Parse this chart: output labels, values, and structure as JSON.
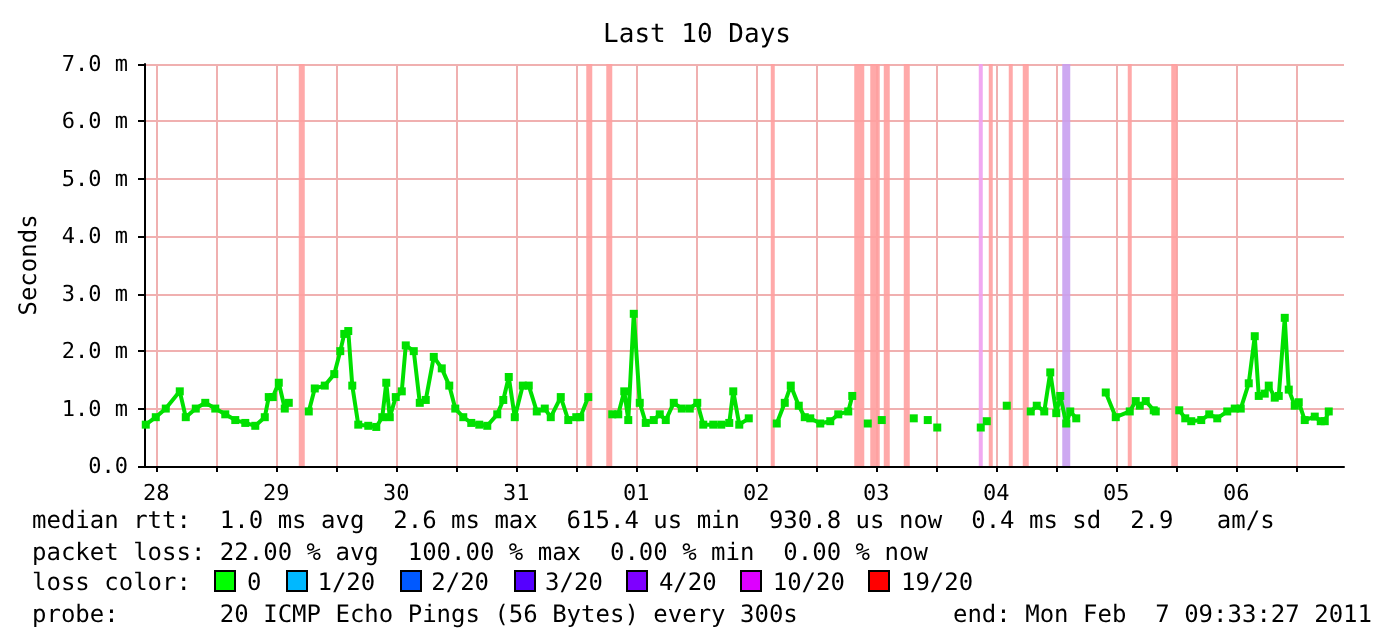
{
  "chart_data": {
    "type": "line",
    "title": "Last 10 Days",
    "ylabel": "Seconds",
    "xlim": [
      "2011-01-28T09:33",
      "2011-02-07T09:33"
    ],
    "xticks": [
      {
        "value": "2011-01-28T12:00",
        "label": "28"
      },
      {
        "value": "2011-01-29T00:00",
        "label": null
      },
      {
        "value": "2011-01-29T12:00",
        "label": "29"
      },
      {
        "value": "2011-01-30T00:00",
        "label": null
      },
      {
        "value": "2011-01-30T12:00",
        "label": "30"
      },
      {
        "value": "2011-01-31T00:00",
        "label": null
      },
      {
        "value": "2011-01-31T12:00",
        "label": "31"
      },
      {
        "value": "2011-02-01T00:00",
        "label": null
      },
      {
        "value": "2011-02-01T12:00",
        "label": "01"
      },
      {
        "value": "2011-02-02T00:00",
        "label": null
      },
      {
        "value": "2011-02-02T12:00",
        "label": "02"
      },
      {
        "value": "2011-02-03T00:00",
        "label": null
      },
      {
        "value": "2011-02-03T12:00",
        "label": "03"
      },
      {
        "value": "2011-02-04T00:00",
        "label": null
      },
      {
        "value": "2011-02-04T12:00",
        "label": "04"
      },
      {
        "value": "2011-02-05T00:00",
        "label": null
      },
      {
        "value": "2011-02-05T12:00",
        "label": "05"
      },
      {
        "value": "2011-02-06T00:00",
        "label": null
      },
      {
        "value": "2011-02-06T12:00",
        "label": "06"
      },
      {
        "value": "2011-02-07T00:00",
        "label": null
      }
    ],
    "ylim": [
      0,
      7
    ],
    "yticks": [
      {
        "value": 0,
        "label": "0.0"
      },
      {
        "value": 1,
        "label": "1.0 m"
      },
      {
        "value": 2,
        "label": "2.0 m"
      },
      {
        "value": 3,
        "label": "3.0 m"
      },
      {
        "value": 4,
        "label": "4.0 m"
      },
      {
        "value": 5,
        "label": "5.0 m"
      },
      {
        "value": 6,
        "label": "6.0 m"
      },
      {
        "value": 7,
        "label": "7.0 m"
      }
    ],
    "grid": true,
    "marker": "square",
    "line_style": "solid",
    "x": [
      "2011-01-28T09:54",
      "2011-01-28T11:54",
      "2011-01-28T13:54",
      "2011-01-28T16:42",
      "2011-01-28T17:54",
      "2011-01-28T19:54",
      "2011-01-28T21:48",
      "2011-01-28T23:48",
      "2011-01-29T01:48",
      "2011-01-29T03:48",
      "2011-01-29T05:48",
      "2011-01-29T07:48",
      "2011-01-29T09:42",
      "2011-01-29T10:30",
      "2011-01-29T11:18",
      "2011-01-29T12:30",
      "2011-01-29T13:42",
      "2011-01-29T14:30",
      "2011-01-29T16:30",
      "2011-01-29T18:30",
      "2011-01-29T19:42",
      "2011-01-29T21:42",
      "2011-01-29T23:36",
      "2011-01-30T00:48",
      "2011-01-30T01:36",
      "2011-01-30T02:24",
      "2011-01-30T03:12",
      "2011-01-30T04:24",
      "2011-01-30T06:24",
      "2011-01-30T08:00",
      "2011-01-30T09:12",
      "2011-01-30T10:00",
      "2011-01-30T10:42",
      "2011-01-30T11:54",
      "2011-01-30T13:06",
      "2011-01-30T13:54",
      "2011-01-30T15:30",
      "2011-01-30T16:42",
      "2011-01-30T17:54",
      "2011-01-30T19:30",
      "2011-01-30T21:06",
      "2011-01-30T22:36",
      "2011-01-30T23:48",
      "2011-01-31T01:24",
      "2011-01-31T03:00",
      "2011-01-31T04:36",
      "2011-01-31T06:12",
      "2011-01-31T08:12",
      "2011-01-31T09:24",
      "2011-01-31T10:30",
      "2011-01-31T11:42",
      "2011-01-31T13:18",
      "2011-01-31T14:30",
      "2011-01-31T16:06",
      "2011-01-31T17:42",
      "2011-01-31T18:54",
      "2011-01-31T20:54",
      "2011-01-31T22:24",
      "2011-02-01T00:00",
      "2011-02-01T00:48",
      "2011-02-01T02:24",
      "2011-02-01T04:48",
      "2011-02-01T07:12",
      "2011-02-01T08:24",
      "2011-02-01T09:36",
      "2011-02-01T10:24",
      "2011-02-01T11:30",
      "2011-02-01T12:42",
      "2011-02-01T13:54",
      "2011-02-01T15:30",
      "2011-02-01T16:42",
      "2011-02-01T17:54",
      "2011-02-01T19:30",
      "2011-02-01T21:06",
      "2011-02-01T22:42",
      "2011-02-02T00:12",
      "2011-02-02T01:24",
      "2011-02-02T03:24",
      "2011-02-02T05:00",
      "2011-02-02T06:36",
      "2011-02-02T07:24",
      "2011-02-02T08:36",
      "2011-02-02T10:30",
      "2011-02-02T12:54",
      "2011-02-02T16:06",
      "2011-02-02T17:42",
      "2011-02-02T18:54",
      "2011-02-02T20:30",
      "2011-02-02T21:42",
      "2011-02-02T22:48",
      "2011-02-03T00:48",
      "2011-02-03T02:48",
      "2011-02-03T04:24",
      "2011-02-03T06:24",
      "2011-02-03T07:12",
      "2011-02-03T08:48",
      "2011-02-03T10:18",
      "2011-02-03T11:54",
      "2011-02-03T13:06",
      "2011-02-03T16:18",
      "2011-02-03T19:30",
      "2011-02-03T21:00",
      "2011-02-03T22:18",
      "2011-02-03T23:00",
      "2011-02-04T00:12",
      "2011-02-04T04:36",
      "2011-02-04T08:54",
      "2011-02-04T09:30",
      "2011-02-04T10:06",
      "2011-02-04T12:06",
      "2011-02-04T14:06",
      "2011-02-04T16:30",
      "2011-02-04T18:54",
      "2011-02-04T20:06",
      "2011-02-04T21:36",
      "2011-02-04T22:48",
      "2011-02-05T00:00",
      "2011-02-05T00:48",
      "2011-02-05T02:00",
      "2011-02-05T02:48",
      "2011-02-05T04:00",
      "2011-02-05T07:12",
      "2011-02-05T09:54",
      "2011-02-05T11:54",
      "2011-02-05T14:42",
      "2011-02-05T15:54",
      "2011-02-05T16:42",
      "2011-02-05T17:54",
      "2011-02-05T19:30",
      "2011-02-05T19:54",
      "2011-02-05T22:18",
      "2011-02-06T00:36",
      "2011-02-06T01:48",
      "2011-02-06T03:00",
      "2011-02-06T05:00",
      "2011-02-06T06:36",
      "2011-02-06T08:12",
      "2011-02-06T10:12",
      "2011-02-06T11:42",
      "2011-02-06T12:54",
      "2011-02-06T14:30",
      "2011-02-06T15:42",
      "2011-02-06T16:30",
      "2011-02-06T17:42",
      "2011-02-06T18:30",
      "2011-02-06T19:42",
      "2011-02-06T20:30",
      "2011-02-06T21:42",
      "2011-02-06T22:30",
      "2011-02-06T23:42",
      "2011-02-07T00:30",
      "2011-02-07T01:42",
      "2011-02-07T03:42",
      "2011-02-07T04:54",
      "2011-02-07T05:42",
      "2011-02-07T06:30"
    ],
    "series": [
      {
        "color": "#00e000",
        "values": [
          0.72,
          0.85,
          1.0,
          1.3,
          0.85,
          1.0,
          1.1,
          1.0,
          0.9,
          0.8,
          0.75,
          0.7,
          0.85,
          1.2,
          1.2,
          1.45,
          1.0,
          1.1,
          null,
          0.95,
          1.35,
          1.4,
          1.6,
          2.0,
          2.3,
          2.35,
          1.4,
          0.72,
          0.7,
          0.68,
          0.85,
          1.45,
          0.85,
          1.2,
          1.3,
          2.1,
          2.0,
          1.1,
          1.15,
          1.9,
          1.7,
          1.4,
          1.0,
          0.85,
          0.75,
          0.72,
          0.7,
          0.9,
          1.15,
          1.55,
          0.85,
          1.4,
          1.4,
          0.95,
          1.0,
          0.85,
          1.2,
          0.8,
          0.85,
          0.85,
          1.2,
          null,
          0.9,
          0.9,
          1.3,
          0.8,
          2.65,
          1.1,
          0.75,
          0.8,
          0.9,
          0.8,
          1.1,
          1.0,
          1.0,
          1.1,
          0.72,
          0.72,
          0.72,
          0.75,
          1.3,
          0.72,
          0.83,
          null,
          0.74,
          1.1,
          1.4,
          1.05,
          0.85,
          0.83,
          0.74,
          0.78,
          0.9,
          0.95,
          1.22,
          null,
          0.74,
          null,
          0.8,
          null,
          0.83,
          null,
          0.8,
          null,
          0.67,
          null,
          0.67,
          null,
          0.78,
          null,
          1.05,
          null,
          0.95,
          1.05,
          0.95,
          1.63,
          0.92,
          1.22,
          0.74,
          0.95,
          0.83,
          null,
          1.28,
          0.85,
          0.95,
          1.13,
          1.05,
          1.13,
          0.97,
          0.95,
          null,
          0.97,
          0.83,
          0.78,
          0.8,
          0.9,
          0.83,
          0.95,
          1.0,
          1.0,
          1.44,
          2.26,
          1.22,
          1.26,
          1.4,
          1.19,
          1.22,
          2.58,
          1.33,
          1.05,
          1.11,
          0.8,
          0.86,
          0.78,
          0.78,
          0.95
        ]
      }
    ],
    "bands": [
      {
        "axis": "x",
        "from": "2011-01-29T16:30",
        "to": "2011-01-29T17:42",
        "color": "#ffa0a0"
      },
      {
        "axis": "x",
        "from": "2011-02-01T02:00",
        "to": "2011-02-01T03:12",
        "color": "#ffa0a0"
      },
      {
        "axis": "x",
        "from": "2011-02-01T06:00",
        "to": "2011-02-01T07:12",
        "color": "#ffa0a0"
      },
      {
        "axis": "x",
        "from": "2011-02-02T14:54",
        "to": "2011-02-02T15:42",
        "color": "#ffa0a0"
      },
      {
        "axis": "x",
        "from": "2011-02-03T07:36",
        "to": "2011-02-03T09:36",
        "color": "#ffa0a0"
      },
      {
        "axis": "x",
        "from": "2011-02-03T10:48",
        "to": "2011-02-03T12:42",
        "color": "#ffa0a0"
      },
      {
        "axis": "x",
        "from": "2011-02-03T13:30",
        "to": "2011-02-03T14:42",
        "color": "#ffa0a0"
      },
      {
        "axis": "x",
        "from": "2011-02-03T17:30",
        "to": "2011-02-03T18:42",
        "color": "#ffa0a0"
      },
      {
        "axis": "x",
        "from": "2011-02-04T08:30",
        "to": "2011-02-04T09:18",
        "color": "#f0a0f0"
      },
      {
        "axis": "x",
        "from": "2011-02-04T10:30",
        "to": "2011-02-04T11:18",
        "color": "#ffa0a0"
      },
      {
        "axis": "x",
        "from": "2011-02-04T14:30",
        "to": "2011-02-04T15:18",
        "color": "#ffa0a0"
      },
      {
        "axis": "x",
        "from": "2011-02-04T17:18",
        "to": "2011-02-04T18:30",
        "color": "#ffa0a0"
      },
      {
        "axis": "x",
        "from": "2011-02-05T01:12",
        "to": "2011-02-05T02:48",
        "color": "#c8a0f0"
      },
      {
        "axis": "x",
        "from": "2011-02-05T14:18",
        "to": "2011-02-05T15:06",
        "color": "#ffa0a0"
      },
      {
        "axis": "x",
        "from": "2011-02-05T23:00",
        "to": "2011-02-06T00:12",
        "color": "#ffa0a0"
      }
    ],
    "annotations": [
      "median rtt:  1.0 ms avg  2.6 ms max  615.4 us min  930.8 us now  0.4 ms sd  2.9   am/s",
      "packet loss: 22.00 % avg  100.00 % max  0.00 % min  0.00 % now",
      "loss color:",
      "0",
      "1/20",
      "2/20",
      "3/20",
      "4/20",
      "10/20",
      "19/20",
      "probe:       20 ICMP Echo Pings (56 Bytes) every 300s",
      "end: Mon Feb  7 09:33:27 2011"
    ]
  }
}
